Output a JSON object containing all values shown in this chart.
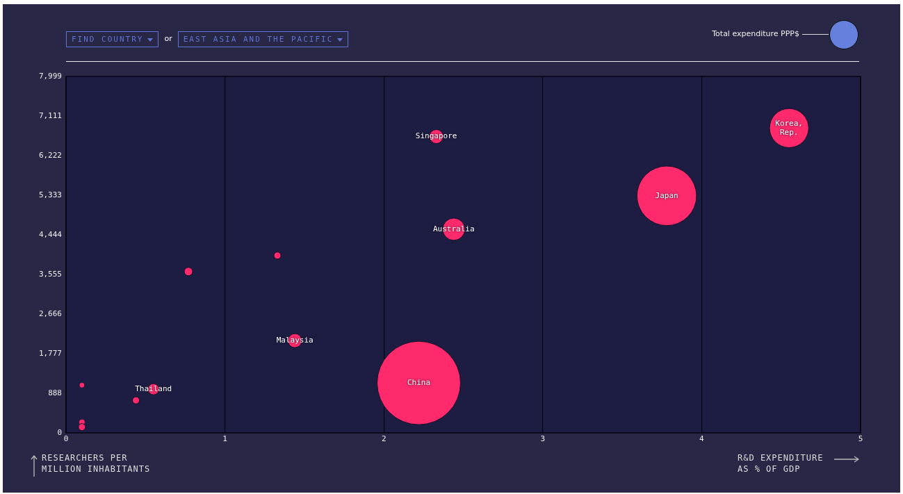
{
  "chart_data": {
    "type": "bubble",
    "legend_title": "Total expenditure PPP$",
    "xlabel": "R&D EXPENDITURE AS % OF GDP",
    "ylabel": "RESEARCHERS PER MILLION INHABITANTS",
    "xlim": [
      0,
      5
    ],
    "xticks": [
      0,
      1,
      2,
      3,
      4,
      5
    ],
    "ylim": [
      0,
      7999
    ],
    "yticks": [
      0,
      888,
      {
        "value": 1777,
        "label": "1,777"
      },
      {
        "value": 2666,
        "label": "2,666"
      },
      {
        "value": 3555,
        "label": "3,555"
      },
      {
        "value": 4444,
        "label": "4,444"
      },
      {
        "value": 5333,
        "label": "5,333"
      },
      {
        "value": 6222,
        "label": "6,222"
      },
      {
        "value": 7111,
        "label": "7,111"
      },
      {
        "value": 7999,
        "label": "7,999"
      }
    ],
    "grid": "x",
    "legend": false,
    "series": [
      {
        "color": "#ff2a6b",
        "x": [
          0.1,
          0.1,
          0.1,
          0.44,
          0.55,
          0.77,
          1.33,
          1.44,
          2.33,
          2.44,
          2.22,
          3.78,
          4.55
        ],
        "values": [
          1070,
          240,
          130,
          730,
          980,
          3620,
          3980,
          2070,
          6650,
          4570,
          1120,
          5320,
          6840
        ],
        "sizes": [
          0.003,
          0.0044,
          0.007,
          0.007,
          0.018,
          0.01,
          0.007,
          0.028,
          0.028,
          0.071,
          1,
          0.51,
          0.22
        ]
      }
    ],
    "annotations": [
      "FIND COUNTRY",
      "or",
      "EAST ASIA AND THE PACIFIC",
      {
        "text": "Thailand",
        "x": 0.55,
        "y": 980
      },
      {
        "text": "Malaysia",
        "x": 1.44,
        "y": 2070
      },
      {
        "text": "Singapore",
        "x": 2.33,
        "y": 6650
      },
      {
        "text": "Australia",
        "x": 2.44,
        "y": 4570
      },
      {
        "text": "China",
        "x": 2.22,
        "y": 1120
      },
      {
        "text": "Japan",
        "x": 3.78,
        "y": 5320
      },
      {
        "text": "Korea, Rep.",
        "x": 4.55,
        "y": 6840
      }
    ]
  }
}
